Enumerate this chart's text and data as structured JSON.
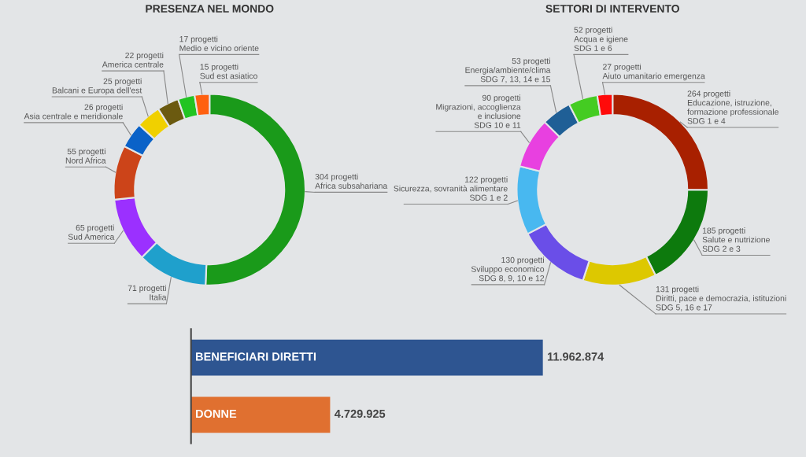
{
  "chart_data": [
    {
      "type": "donut",
      "title": "PRESENZA NEL MONDO",
      "categories": [
        "Africa subsahariana",
        "Italia",
        "Sud America",
        "Nord Africa",
        "Asia centrale e meridionale",
        "Balcani e Europa dell'est",
        "America centrale",
        "Medio e vicino oriente",
        "Sud est asiatico"
      ],
      "values": [
        304,
        71,
        65,
        55,
        26,
        25,
        22,
        17,
        15
      ],
      "colors": [
        "#1a9a1a",
        "#1fa0cc",
        "#9b30ff",
        "#cc4419",
        "#0a62c8",
        "#f0d000",
        "#6b5a10",
        "#22c422",
        "#ff6010"
      ],
      "value_labels": [
        "304 progetti",
        "71 progetti",
        "65 progetti",
        "55 progetti",
        "26 progetti",
        "25 progetti",
        "22 progetti",
        "17 progetti",
        "15 progetti"
      ]
    },
    {
      "type": "donut",
      "title": "SETTORI DI INTERVENTO",
      "categories": [
        "Educazione, istruzione,\nformazione professionale\nSDG 1 e 4",
        "Salute e nutrizione\nSDG 2 e 3",
        "Diritti, pace e democrazia, istituzioni\nSDG 5, 16 e 17",
        "Sviluppo economico\nSDG 8, 9, 10 e 12",
        "Sicurezza, sovranità alimentare\nSDG 1 e 2",
        "Migrazioni, accoglienza\ne inclusione\nSDG 10 e 11",
        "Energia/ambiente/clima\nSDG 7, 13, 14 e 15",
        "Acqua e igiene\nSDG 1 e 6",
        "Aiuto umanitario emergenza"
      ],
      "values": [
        264,
        185,
        131,
        130,
        122,
        90,
        53,
        52,
        27
      ],
      "colors": [
        "#a82000",
        "#0d7a0d",
        "#ddc800",
        "#6a4ee8",
        "#48b8f0",
        "#e840e0",
        "#1f5f96",
        "#44cc22",
        "#ff0a0a"
      ],
      "value_labels": [
        "264 progetti",
        "185 progetti",
        "131 progetti",
        "130 progetti",
        "122 progetti",
        "90 progetti",
        "53 progetti",
        "52 progetti",
        "27 progetti"
      ]
    },
    {
      "type": "bar",
      "orientation": "horizontal",
      "categories": [
        "BENEFICIARI DIRETTI",
        "DONNE"
      ],
      "values": [
        11962874,
        4729925
      ],
      "colors": [
        "#2e5591",
        "#e07030"
      ],
      "value_labels": [
        "11.962.874",
        "4.729.925"
      ]
    }
  ]
}
